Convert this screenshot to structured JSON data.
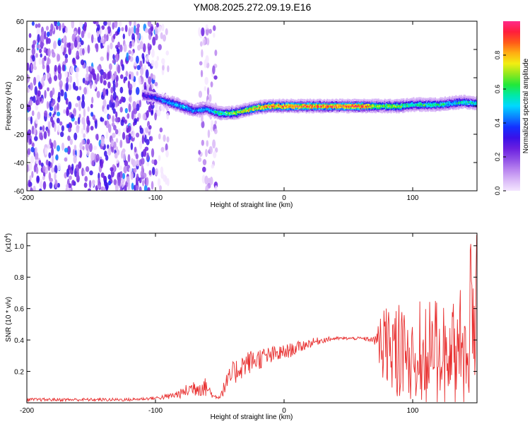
{
  "title": "YM08.2025.272.09.19.E16",
  "colors": {
    "series": "#e83030",
    "frame": "#000000",
    "colormap": [
      "#f4e6ff",
      "#d9b8f7",
      "#b984ef",
      "#8f4fe6",
      "#6a1fe0",
      "#3a10e8",
      "#1430ff",
      "#0b86ff",
      "#00d8ff",
      "#00e9a8",
      "#21e83a",
      "#8fe81e",
      "#f2ee12",
      "#ffae12",
      "#ff5a18",
      "#ff1e3c",
      "#ff2a8a"
    ]
  },
  "chart_data": [
    {
      "type": "heatmap",
      "name": "spectrogram",
      "xlabel": "Height of straight line (km)",
      "ylabel": "Frequency (Hz)",
      "xlim": [
        -200,
        150
      ],
      "ylim": [
        -60,
        60
      ],
      "xticks": [
        -200,
        -100,
        0,
        100
      ],
      "xtick_labels": [
        "-200",
        "-100",
        "0",
        "100"
      ],
      "yticks": [
        60,
        40,
        20,
        0,
        -20,
        -40,
        -60
      ],
      "ytick_labels": [
        "60",
        "40",
        "20",
        "0",
        "-20",
        "-40",
        "-60"
      ],
      "colorbar": {
        "label": "Normalized spectral amplitude",
        "range": [
          0,
          1
        ],
        "ticks": [
          0.0,
          0.2,
          0.4,
          0.6,
          0.8
        ],
        "tick_labels": [
          "0.0",
          "0.2",
          "0.4",
          "0.6",
          "0.8"
        ]
      },
      "ridge": {
        "x": [
          -110,
          -100,
          -90,
          -80,
          -70,
          -60,
          -50,
          -40,
          -30,
          -20,
          -10,
          0,
          20,
          40,
          60,
          75,
          90,
          100,
          110,
          120,
          130,
          140,
          150
        ],
        "y": [
          8,
          6,
          3,
          0,
          -3,
          -2,
          -5,
          -5,
          -3,
          -1,
          0,
          0,
          0,
          0,
          0,
          0,
          0,
          1,
          1,
          1,
          2,
          3,
          2
        ],
        "amplitude": [
          0.3,
          0.4,
          0.5,
          0.55,
          0.45,
          0.5,
          0.6,
          0.7,
          0.8,
          0.85,
          0.9,
          0.9,
          0.95,
          0.95,
          0.95,
          0.7,
          0.75,
          0.6,
          0.65,
          0.6,
          0.55,
          0.6,
          0.6
        ]
      },
      "noise_regions": [
        {
          "x_range": [
            -200,
            -100
          ],
          "amplitude": 0.2
        },
        {
          "x_range": [
            -100,
            -90
          ],
          "amplitude": 0.05
        },
        {
          "x_range": [
            -66,
            -52
          ],
          "amplitude": 0.08
        }
      ]
    },
    {
      "type": "line",
      "name": "snr",
      "xlabel": "Height of straight line (km)",
      "ylabel": "SNR (10 * v/v)",
      "yscale_label": "(x10",
      "yscale_exp": "4",
      "yscale_close": ")",
      "xlim": [
        -200,
        150
      ],
      "ylim": [
        0,
        1.08
      ],
      "xticks": [
        -200,
        -100,
        0,
        100
      ],
      "xtick_labels": [
        "-200",
        "-100",
        "0",
        "100"
      ],
      "yticks": [
        0.2,
        0.4,
        0.6,
        0.8,
        1.0
      ],
      "ytick_labels": [
        "0.2",
        "0.4",
        "0.6",
        "0.8",
        "1.0"
      ],
      "series": [
        {
          "name": "SNR",
          "x": [
            -200,
            -120,
            -100,
            -90,
            -80,
            -70,
            -60,
            -55,
            -50,
            -45,
            -40,
            -35,
            -30,
            -20,
            -10,
            0,
            10,
            20,
            30,
            40,
            50,
            60,
            70,
            75,
            80,
            85,
            90,
            100,
            110,
            120,
            130,
            140,
            148
          ],
          "mean": [
            0.02,
            0.02,
            0.03,
            0.04,
            0.06,
            0.1,
            0.1,
            0.04,
            0.04,
            0.12,
            0.18,
            0.22,
            0.25,
            0.28,
            0.3,
            0.32,
            0.35,
            0.38,
            0.4,
            0.41,
            0.41,
            0.41,
            0.4,
            0.38,
            0.36,
            0.34,
            0.33,
            0.3,
            0.3,
            0.31,
            0.34,
            0.35,
            0.55
          ],
          "amp": [
            0.01,
            0.01,
            0.01,
            0.02,
            0.03,
            0.06,
            0.06,
            0.01,
            0.02,
            0.06,
            0.08,
            0.08,
            0.08,
            0.07,
            0.06,
            0.05,
            0.04,
            0.03,
            0.02,
            0.01,
            0.01,
            0.01,
            0.02,
            0.15,
            0.25,
            0.25,
            0.26,
            0.25,
            0.3,
            0.32,
            0.35,
            0.38,
            0.5
          ]
        }
      ]
    }
  ]
}
